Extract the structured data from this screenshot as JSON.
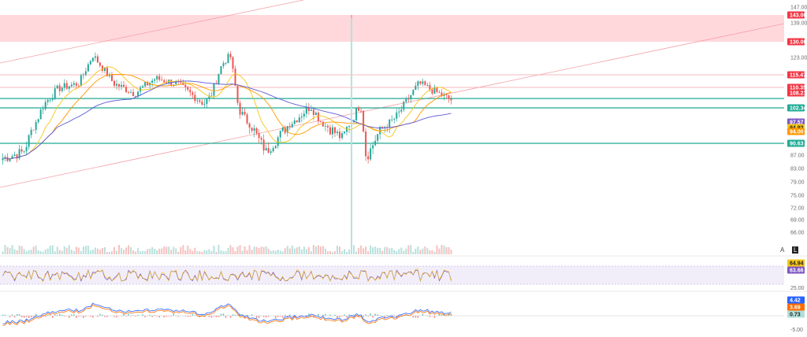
{
  "chart_data": {
    "type": "candlestick",
    "price_scale": {
      "ticks": [
        "147.00",
        "139.00",
        "130.00",
        "123.00",
        "115.47",
        "110.35",
        "108.21",
        "102.34",
        "97.57",
        "94.92",
        "90.63",
        "87.00",
        "83.00",
        "79.00",
        "75.00",
        "72.00",
        "69.00",
        "66.00"
      ],
      "labels_plain": [
        "147.00",
        "139.00",
        "123.00",
        "87.00",
        "83.00",
        "79.00",
        "75.00",
        "72.00",
        "69.00",
        "66.00"
      ]
    },
    "price_tags": [
      {
        "text": "143.00",
        "value": 143.0,
        "color": "#f23645"
      },
      {
        "text": "130.00",
        "value": 130.0,
        "color": "#f23645"
      },
      {
        "text": "115.47",
        "value": 115.47,
        "color": "#f23645"
      },
      {
        "text": "110.35",
        "value": 110.35,
        "color": "#f23645"
      },
      {
        "text": "108.21",
        "value": 108.21,
        "color": "#f23645"
      },
      {
        "text": "102.34",
        "value": 102.34,
        "color": "#22ab94"
      },
      {
        "text": "97.57",
        "value": 97.57,
        "color": "#7e57c2"
      },
      {
        "text": "94.92",
        "value": 94.92,
        "color": "#f5c518"
      },
      {
        "text": "94.00",
        "value": 94.0,
        "color": "#ff9800"
      },
      {
        "text": "90.63",
        "value": 90.63,
        "color": "#22ab94"
      }
    ],
    "horizontal_levels": [
      {
        "value": 115.47,
        "color": "#f5a3a8"
      },
      {
        "value": 110.35,
        "color": "#f5a3a8"
      },
      {
        "value": 106.0,
        "color": "#22ab94"
      },
      {
        "value": 102.34,
        "color": "#22ab94"
      },
      {
        "value": 90.63,
        "color": "#22ab94"
      }
    ],
    "zone": {
      "from": 130.0,
      "to": 143.0,
      "color": "#ffd1d6"
    },
    "rsi": {
      "ticks": [
        "25.00"
      ],
      "tags": [
        {
          "text": "64.94",
          "color": "#f5c518"
        },
        {
          "text": "63.66",
          "color": "#7e57c2"
        }
      ]
    },
    "macd": {
      "ticks": [
        "-5.00"
      ],
      "tags": [
        {
          "text": "4.42",
          "color": "#2962ff"
        },
        {
          "text": "3.69",
          "color": "#ff6d00"
        },
        {
          "text": "0.73",
          "color": "#b2dfdb"
        }
      ]
    },
    "scale_buttons": [
      "A",
      "L"
    ]
  }
}
